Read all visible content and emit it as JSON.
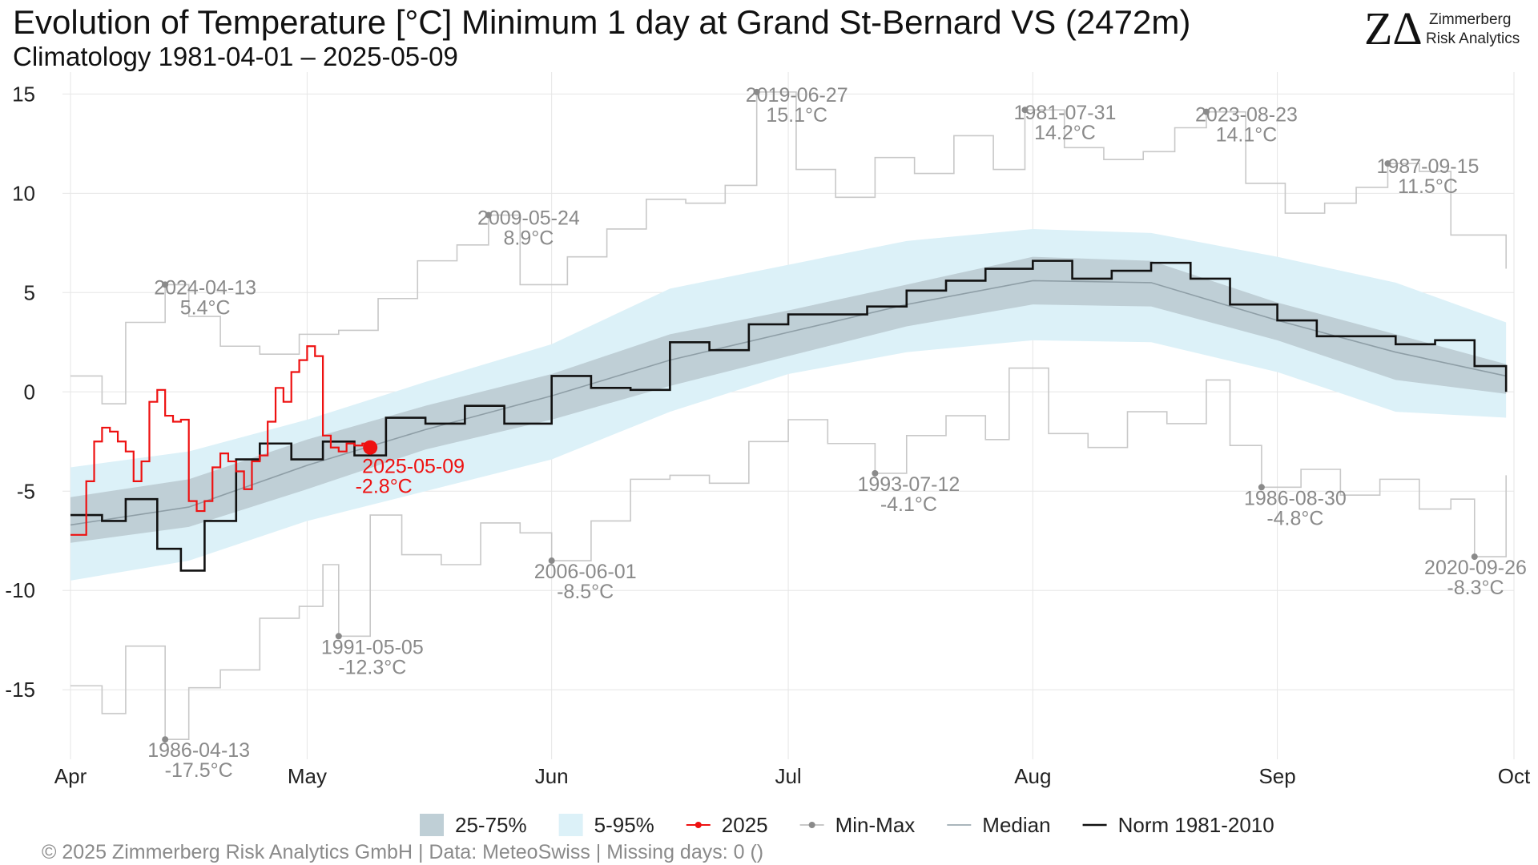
{
  "header": {
    "title": "Evolution of Temperature [°C] Minimum 1 day at Grand St-Bernard  VS (2472m)",
    "subtitle": "Climatology 1981-04-01 – 2025-05-09"
  },
  "logo": {
    "mark": "ZΔ",
    "line1": "Zimmerberg",
    "line2": "Risk Analytics"
  },
  "footer": "©  2025 Zimmerberg Risk Analytics GmbH | Data: MeteoSwiss | Missing days: 0 ()",
  "colors": {
    "band_25_75": "#bfcfd6",
    "band_5_95": "#dcf1f8",
    "current_year": "#ee1111",
    "min_max": "#c8c8c8",
    "median": "#8e9ea6",
    "norm": "#111111"
  },
  "chart_data": {
    "type": "line",
    "x_axis": {
      "type": "date",
      "range": [
        "2025-04-01",
        "2025-10-01"
      ],
      "ticks": [
        {
          "date": "2025-04-01",
          "label": "Apr"
        },
        {
          "date": "2025-05-01",
          "label": "May"
        },
        {
          "date": "2025-06-01",
          "label": "Jun"
        },
        {
          "date": "2025-07-01",
          "label": "Jul"
        },
        {
          "date": "2025-08-01",
          "label": "Aug"
        },
        {
          "date": "2025-09-01",
          "label": "Sep"
        },
        {
          "date": "2025-10-01",
          "label": "Oct"
        }
      ]
    },
    "y_axis": {
      "ylim": [
        -18.5,
        15.7
      ],
      "ticks": [
        -15,
        -10,
        -5,
        0,
        5,
        10,
        15
      ]
    },
    "grid": true,
    "legend_placement": "bottom",
    "legend": [
      {
        "key": "band_25_75",
        "label": "25-75%",
        "kind": "band"
      },
      {
        "key": "band_5_95",
        "label": "5-95%",
        "kind": "band"
      },
      {
        "key": "current_year",
        "label": "2025",
        "kind": "line-point"
      },
      {
        "key": "min_max",
        "label": "Min-Max",
        "kind": "line-point"
      },
      {
        "key": "median",
        "label": "Median",
        "kind": "line"
      },
      {
        "key": "norm",
        "label": "Norm 1981-2010",
        "kind": "line"
      }
    ],
    "band_25_75": {
      "x": [
        "2025-04-01",
        "2025-04-16",
        "2025-05-01",
        "2025-05-16",
        "2025-06-01",
        "2025-06-16",
        "2025-07-01",
        "2025-07-16",
        "2025-08-01",
        "2025-08-16",
        "2025-09-01",
        "2025-09-16",
        "2025-09-30"
      ],
      "low": [
        -7.6,
        -6.8,
        -4.9,
        -2.9,
        -1.4,
        0.3,
        1.8,
        3.3,
        4.4,
        4.3,
        2.6,
        0.6,
        -0.1
      ],
      "high": [
        -5.3,
        -4.4,
        -2.4,
        -0.7,
        0.9,
        2.9,
        4.1,
        5.4,
        6.8,
        6.6,
        4.5,
        2.9,
        1.4
      ]
    },
    "band_5_95": {
      "x": [
        "2025-04-01",
        "2025-04-16",
        "2025-05-01",
        "2025-05-16",
        "2025-06-01",
        "2025-06-16",
        "2025-07-01",
        "2025-07-16",
        "2025-08-01",
        "2025-08-16",
        "2025-09-01",
        "2025-09-16",
        "2025-09-30"
      ],
      "low": [
        -9.5,
        -8.5,
        -6.5,
        -5.0,
        -3.4,
        -1.0,
        0.9,
        2.0,
        2.6,
        2.5,
        1.0,
        -1.0,
        -1.3
      ],
      "high": [
        -3.8,
        -3.0,
        -1.4,
        0.5,
        2.4,
        5.2,
        6.4,
        7.6,
        8.2,
        8.0,
        6.8,
        5.5,
        3.5
      ]
    },
    "median": {
      "x": [
        "2025-04-01",
        "2025-04-16",
        "2025-05-01",
        "2025-05-16",
        "2025-06-01",
        "2025-06-16",
        "2025-07-01",
        "2025-07-16",
        "2025-08-01",
        "2025-08-16",
        "2025-09-01",
        "2025-09-16",
        "2025-09-30"
      ],
      "y": [
        -6.7,
        -5.8,
        -3.7,
        -1.9,
        -0.2,
        1.6,
        3.0,
        4.4,
        5.6,
        5.5,
        3.6,
        2.0,
        0.8
      ]
    },
    "norm_1981_2010": {
      "x": [
        "2025-04-01",
        "2025-04-05",
        "2025-04-08",
        "2025-04-12",
        "2025-04-15",
        "2025-04-18",
        "2025-04-22",
        "2025-04-25",
        "2025-04-29",
        "2025-05-03",
        "2025-05-07",
        "2025-05-11",
        "2025-05-16",
        "2025-05-21",
        "2025-05-26",
        "2025-06-01",
        "2025-06-06",
        "2025-06-11",
        "2025-06-16",
        "2025-06-21",
        "2025-06-26",
        "2025-07-01",
        "2025-07-06",
        "2025-07-11",
        "2025-07-16",
        "2025-07-21",
        "2025-07-26",
        "2025-08-01",
        "2025-08-06",
        "2025-08-11",
        "2025-08-16",
        "2025-08-21",
        "2025-08-26",
        "2025-09-01",
        "2025-09-06",
        "2025-09-11",
        "2025-09-16",
        "2025-09-21",
        "2025-09-26",
        "2025-09-30"
      ],
      "y": [
        -6.2,
        -6.5,
        -5.4,
        -7.9,
        -9.0,
        -6.5,
        -3.4,
        -2.6,
        -3.4,
        -2.5,
        -3.2,
        -1.3,
        -1.6,
        -0.7,
        -1.6,
        0.8,
        0.2,
        0.1,
        2.5,
        2.1,
        3.4,
        3.9,
        3.9,
        4.3,
        5.1,
        5.6,
        6.2,
        6.6,
        5.7,
        6.1,
        6.5,
        5.7,
        4.4,
        3.6,
        2.8,
        2.8,
        2.4,
        2.6,
        1.3,
        0.0
      ]
    },
    "min_line": {
      "x": [
        "2025-04-01",
        "2025-04-05",
        "2025-04-08",
        "2025-04-13",
        "2025-04-16",
        "2025-04-20",
        "2025-04-25",
        "2025-04-30",
        "2025-05-03",
        "2025-05-05",
        "2025-05-09",
        "2025-05-13",
        "2025-05-18",
        "2025-05-23",
        "2025-05-28",
        "2025-06-01",
        "2025-06-06",
        "2025-06-11",
        "2025-06-16",
        "2025-06-21",
        "2025-06-26",
        "2025-07-01",
        "2025-07-06",
        "2025-07-12",
        "2025-07-16",
        "2025-07-21",
        "2025-07-26",
        "2025-07-29",
        "2025-08-03",
        "2025-08-08",
        "2025-08-13",
        "2025-08-18",
        "2025-08-23",
        "2025-08-26",
        "2025-08-30",
        "2025-09-04",
        "2025-09-09",
        "2025-09-14",
        "2025-09-19",
        "2025-09-23",
        "2025-09-26",
        "2025-09-30"
      ],
      "y": [
        -14.8,
        -16.2,
        -12.8,
        -17.5,
        -14.9,
        -14.0,
        -11.4,
        -10.8,
        -8.7,
        -12.3,
        -6.2,
        -8.2,
        -8.7,
        -6.6,
        -7.1,
        -8.5,
        -6.5,
        -4.4,
        -4.2,
        -4.6,
        -2.5,
        -1.4,
        -2.6,
        -4.1,
        -2.2,
        -1.2,
        -2.4,
        1.2,
        -2.1,
        -2.8,
        -1.0,
        -1.6,
        0.6,
        -2.7,
        -4.8,
        -3.9,
        -5.2,
        -4.4,
        -5.9,
        -5.4,
        -8.3,
        -4.2
      ]
    },
    "max_line": {
      "x": [
        "2025-04-01",
        "2025-04-05",
        "2025-04-08",
        "2025-04-13",
        "2025-04-16",
        "2025-04-20",
        "2025-04-25",
        "2025-04-30",
        "2025-05-05",
        "2025-05-10",
        "2025-05-15",
        "2025-05-20",
        "2025-05-24",
        "2025-05-28",
        "2025-06-03",
        "2025-06-08",
        "2025-06-13",
        "2025-06-18",
        "2025-06-23",
        "2025-06-27",
        "2025-07-02",
        "2025-07-07",
        "2025-07-12",
        "2025-07-17",
        "2025-07-22",
        "2025-07-27",
        "2025-07-31",
        "2025-08-05",
        "2025-08-10",
        "2025-08-15",
        "2025-08-19",
        "2025-08-23",
        "2025-08-28",
        "2025-09-02",
        "2025-09-07",
        "2025-09-11",
        "2025-09-15",
        "2025-09-19",
        "2025-09-23",
        "2025-09-26",
        "2025-09-30"
      ],
      "y": [
        0.8,
        -0.6,
        3.5,
        5.4,
        3.8,
        2.3,
        1.9,
        2.9,
        3.1,
        4.7,
        6.6,
        7.4,
        8.9,
        5.4,
        6.8,
        8.2,
        9.7,
        9.5,
        10.4,
        15.1,
        11.2,
        9.8,
        11.8,
        11.0,
        12.9,
        11.2,
        14.2,
        12.3,
        11.7,
        12.1,
        13.3,
        14.1,
        10.5,
        9.0,
        9.5,
        10.3,
        11.5,
        11.1,
        7.9,
        7.9,
        6.2
      ]
    },
    "current_2025": {
      "x": [
        "2025-04-01",
        "2025-04-03",
        "2025-04-04",
        "2025-04-05",
        "2025-04-06",
        "2025-04-07",
        "2025-04-08",
        "2025-04-09",
        "2025-04-10",
        "2025-04-11",
        "2025-04-12",
        "2025-04-13",
        "2025-04-14",
        "2025-04-15",
        "2025-04-16",
        "2025-04-17",
        "2025-04-18",
        "2025-04-19",
        "2025-04-20",
        "2025-04-21",
        "2025-04-22",
        "2025-04-23",
        "2025-04-24",
        "2025-04-25",
        "2025-04-26",
        "2025-04-27",
        "2025-04-28",
        "2025-04-29",
        "2025-04-30",
        "2025-05-01",
        "2025-05-02",
        "2025-05-03",
        "2025-05-04",
        "2025-05-05",
        "2025-05-06",
        "2025-05-07",
        "2025-05-08",
        "2025-05-09"
      ],
      "y": [
        -7.2,
        -4.5,
        -2.5,
        -1.8,
        -2.0,
        -2.5,
        -3.0,
        -4.5,
        -3.5,
        -0.5,
        0.1,
        -1.2,
        -1.5,
        -1.4,
        -5.5,
        -6.0,
        -5.5,
        -3.8,
        -3.1,
        -3.5,
        -4.0,
        -4.9,
        -3.5,
        -3.2,
        -1.5,
        0.2,
        -0.5,
        1.0,
        1.6,
        2.3,
        1.8,
        -2.2,
        -2.8,
        -3.0,
        -2.6,
        -2.7,
        -2.6,
        -2.8
      ]
    },
    "annotations": [
      {
        "date": "2025-04-13",
        "value": 5.4,
        "label": "2024-04-13",
        "value_label": "5.4°C",
        "color": "min_max"
      },
      {
        "date": "2025-05-24",
        "value": 8.9,
        "label": "2009-05-24",
        "value_label": "8.9°C",
        "color": "min_max"
      },
      {
        "date": "2025-06-27",
        "value": 15.1,
        "label": "2019-06-27",
        "value_label": "15.1°C",
        "color": "min_max"
      },
      {
        "date": "2025-07-31",
        "value": 14.2,
        "label": "1981-07-31",
        "value_label": "14.2°C",
        "color": "min_max"
      },
      {
        "date": "2025-08-23",
        "value": 14.1,
        "label": "2023-08-23",
        "value_label": "14.1°C",
        "color": "min_max"
      },
      {
        "date": "2025-09-15",
        "value": 11.5,
        "label": "1987-09-15",
        "value_label": "11.5°C",
        "color": "min_max"
      },
      {
        "date": "2025-04-13",
        "value": -17.5,
        "label": "1986-04-13",
        "value_label": "-17.5°C",
        "color": "min_max"
      },
      {
        "date": "2025-05-05",
        "value": -12.3,
        "label": "1991-05-05",
        "value_label": "-12.3°C",
        "color": "min_max"
      },
      {
        "date": "2025-06-01",
        "value": -8.5,
        "label": "2006-06-01",
        "value_label": "-8.5°C",
        "color": "min_max"
      },
      {
        "date": "2025-07-12",
        "value": -4.1,
        "label": "1993-07-12",
        "value_label": "-4.1°C",
        "color": "min_max"
      },
      {
        "date": "2025-08-30",
        "value": -4.8,
        "label": "1986-08-30",
        "value_label": "-4.8°C",
        "color": "min_max"
      },
      {
        "date": "2025-09-26",
        "value": -8.3,
        "label": "2020-09-26",
        "value_label": "-8.3°C",
        "color": "min_max"
      },
      {
        "date": "2025-05-09",
        "value": -2.8,
        "label": "2025-05-09",
        "value_label": "-2.8°C",
        "color": "current_year",
        "highlight": true
      }
    ]
  }
}
